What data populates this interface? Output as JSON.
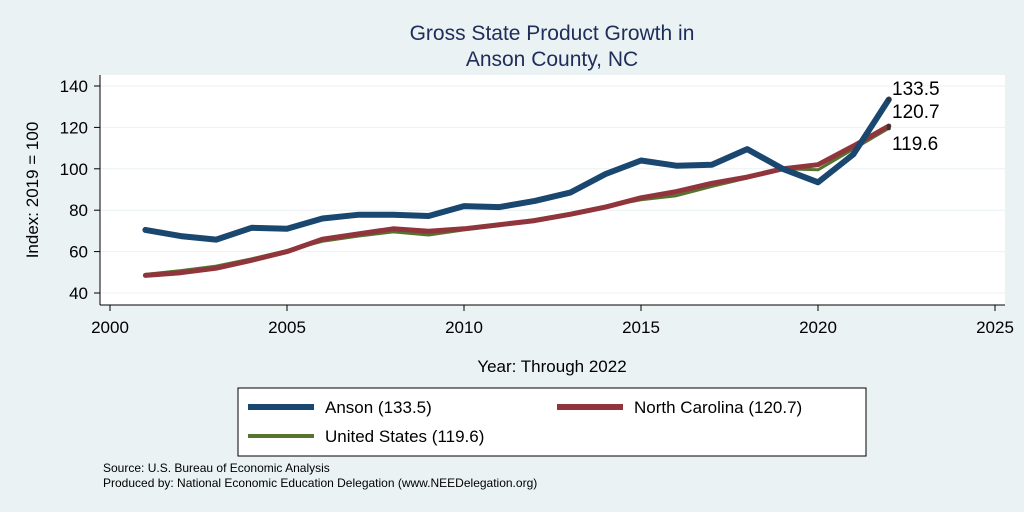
{
  "chart_data": {
    "type": "line",
    "title": "Gross State Product Growth in",
    "subtitle": "Anson County, NC",
    "xlabel": "Year: Through 2022",
    "ylabel": "Index: 2019 = 100",
    "xlim": [
      2000,
      2025
    ],
    "ylim": [
      35,
      145
    ],
    "x_ticks": [
      2000,
      2005,
      2010,
      2015,
      2020,
      2025
    ],
    "y_ticks": [
      40,
      60,
      80,
      100,
      120,
      140
    ],
    "grid": true,
    "legend_position": "bottom",
    "x": [
      2001,
      2002,
      2003,
      2004,
      2005,
      2006,
      2007,
      2008,
      2009,
      2010,
      2011,
      2012,
      2013,
      2014,
      2015,
      2016,
      2017,
      2018,
      2019,
      2020,
      2021,
      2022
    ],
    "series": [
      {
        "name": "Anson",
        "legend_label": "Anson  (133.5)",
        "end_label": "133.5",
        "color": "#1a476f",
        "values": [
          70.5,
          67.5,
          65.8,
          71.5,
          71.0,
          76.0,
          77.8,
          77.8,
          77.2,
          82.0,
          81.5,
          84.5,
          88.5,
          97.5,
          104.0,
          101.5,
          102.0,
          109.5,
          100.0,
          93.5,
          107.0,
          133.5
        ]
      },
      {
        "name": "North Carolina",
        "legend_label": "North Carolina (120.7)",
        "end_label": "120.7",
        "color": "#90353b",
        "values": [
          48.5,
          49.8,
          52.0,
          55.8,
          60.0,
          66.0,
          68.5,
          71.0,
          69.8,
          71.0,
          73.0,
          75.0,
          78.0,
          81.5,
          86.0,
          89.0,
          93.0,
          96.0,
          100.0,
          102.0,
          111.0,
          120.7
        ]
      },
      {
        "name": "United States",
        "legend_label": "United States (119.6)",
        "end_label": "119.6",
        "color": "#55752f",
        "values": [
          49.0,
          50.8,
          53.0,
          56.5,
          60.5,
          65.0,
          67.5,
          69.5,
          68.0,
          70.5,
          72.5,
          75.5,
          78.5,
          82.0,
          85.0,
          87.0,
          91.5,
          95.5,
          100.0,
          99.5,
          109.5,
          119.6
        ]
      }
    ]
  },
  "notes": {
    "source": "Source: U.S. Bureau of Economic Analysis",
    "produced": "Produced by: National Economic Education Delegation (www.NEEDelegation.org)"
  }
}
